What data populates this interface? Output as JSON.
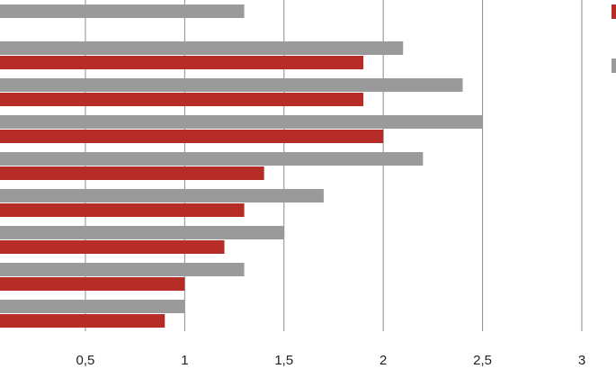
{
  "chart_data": {
    "type": "bar",
    "orientation": "horizontal",
    "title": "",
    "xlabel": "",
    "ylabel": "",
    "xlim": [
      0.07,
      3.0
    ],
    "grid": true,
    "legend_position": "right (partially visible)",
    "x_ticks": [
      {
        "value": 0.5,
        "label": "0,5"
      },
      {
        "value": 1,
        "label": "1"
      },
      {
        "value": 1.5,
        "label": "1,5"
      },
      {
        "value": 2,
        "label": "2"
      },
      {
        "value": 2.5,
        "label": "2,5"
      },
      {
        "value": 3,
        "label": "3"
      }
    ],
    "series": [
      {
        "color": "#9a9a9a",
        "values": [
          1.3,
          2.1,
          2.4,
          2.5,
          2.2,
          1.7,
          1.5,
          1.3,
          1.0
        ]
      },
      {
        "color": "#b52d26",
        "values": [
          null,
          1.9,
          1.9,
          2.0,
          1.4,
          1.3,
          1.2,
          1.0,
          0.9
        ]
      }
    ]
  }
}
